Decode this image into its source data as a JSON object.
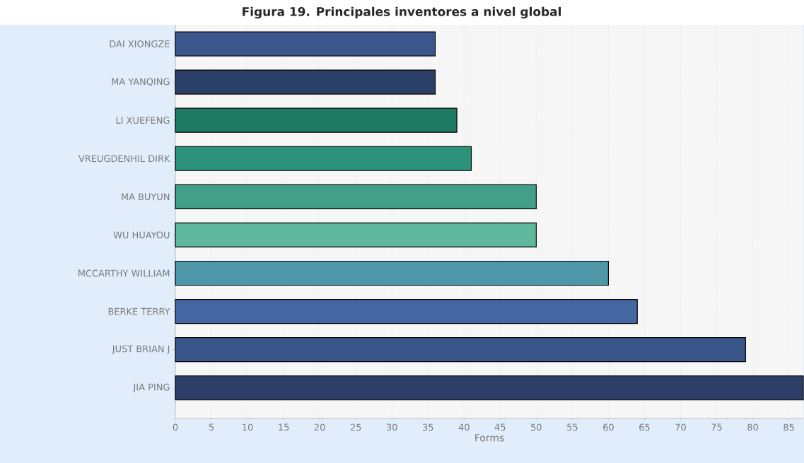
{
  "chart_data": {
    "type": "bar",
    "orientation": "horizontal",
    "title": "Figura 19. Principales inventores a nivel global",
    "xlabel": "Forms",
    "categories": [
      "DAI XIONGZE",
      "MA YANQING",
      "LI XUEFENG",
      "VREUGDENHIL DIRK",
      "MA BUYUN",
      "WU HUAYOU",
      "MCCARTHY WILLIAM",
      "BERKE TERRY",
      "JUST BRIAN J",
      "JIA PING"
    ],
    "values": [
      36,
      36,
      39,
      41,
      50,
      50,
      60,
      64,
      79,
      87
    ],
    "colors": [
      "#3b578c",
      "#2d4068",
      "#1e7a63",
      "#2c927c",
      "#42a088",
      "#5db89e",
      "#4e97a8",
      "#4466a3",
      "#3a558a",
      "#2d3f69"
    ],
    "xlim": [
      0,
      87
    ],
    "xticks": [
      0,
      5,
      10,
      15,
      20,
      25,
      30,
      35,
      40,
      45,
      50,
      55,
      60,
      65,
      70,
      75,
      80,
      85
    ],
    "grid": "x"
  }
}
